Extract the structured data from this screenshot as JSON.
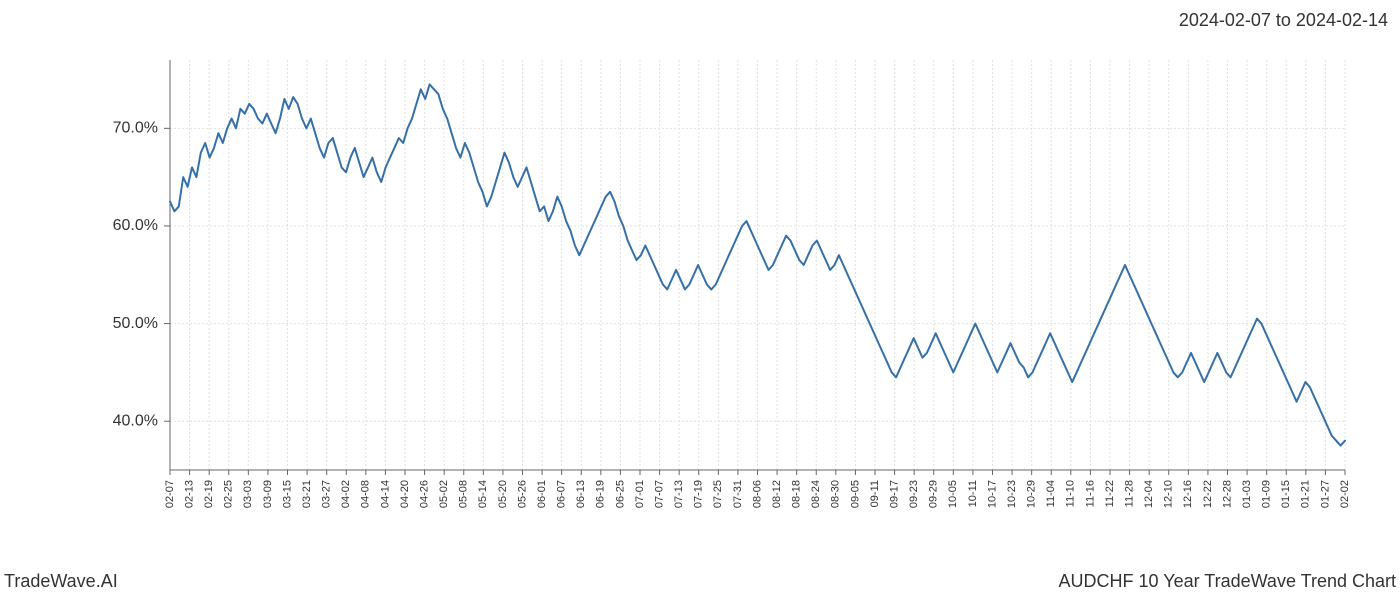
{
  "header": {
    "date_range": "2024-02-07 to 2024-02-14"
  },
  "footer": {
    "left": "TradeWave.AI",
    "right": "AUDCHF 10 Year TradeWave Trend Chart"
  },
  "chart": {
    "type": "line",
    "background_color": "#ffffff",
    "grid_color": "#e0e0e0",
    "axis_color": "#666666",
    "line_color": "#3570a8",
    "line_width": 2,
    "highlight_band": {
      "fill": "#e8efe0",
      "x_start": "02-07",
      "x_end": "02-14"
    },
    "y_axis": {
      "min": 35,
      "max": 77,
      "ticks": [
        40,
        50,
        60,
        70
      ],
      "tick_labels": [
        "40.0%",
        "50.0%",
        "60.0%",
        "70.0%"
      ],
      "label_fontsize": 16
    },
    "x_axis": {
      "ticks": [
        "02-07",
        "02-13",
        "02-19",
        "02-25",
        "03-03",
        "03-09",
        "03-15",
        "03-21",
        "03-27",
        "04-02",
        "04-08",
        "04-14",
        "04-20",
        "04-26",
        "05-02",
        "05-08",
        "05-14",
        "05-20",
        "05-26",
        "06-01",
        "06-07",
        "06-13",
        "06-19",
        "06-25",
        "07-01",
        "07-07",
        "07-13",
        "07-19",
        "07-25",
        "07-31",
        "08-06",
        "08-12",
        "08-18",
        "08-24",
        "08-30",
        "09-05",
        "09-11",
        "09-17",
        "09-23",
        "09-29",
        "10-05",
        "10-11",
        "10-17",
        "10-23",
        "10-29",
        "11-04",
        "11-10",
        "11-16",
        "11-22",
        "11-28",
        "12-04",
        "12-10",
        "12-16",
        "12-22",
        "12-28",
        "01-03",
        "01-09",
        "01-15",
        "01-21",
        "01-27",
        "02-02"
      ],
      "label_fontsize": 11,
      "rotation": -90
    },
    "data": [
      62.5,
      61.5,
      62.0,
      65.0,
      64.0,
      66.0,
      65.0,
      67.5,
      68.5,
      67.0,
      68.0,
      69.5,
      68.5,
      70.0,
      71.0,
      70.0,
      72.0,
      71.5,
      72.5,
      72.0,
      71.0,
      70.5,
      71.5,
      70.5,
      69.5,
      71.0,
      73.0,
      72.0,
      73.2,
      72.5,
      71.0,
      70.0,
      71.0,
      69.5,
      68.0,
      67.0,
      68.5,
      69.0,
      67.5,
      66.0,
      65.5,
      67.0,
      68.0,
      66.5,
      65.0,
      66.0,
      67.0,
      65.5,
      64.5,
      66.0,
      67.0,
      68.0,
      69.0,
      68.5,
      70.0,
      71.0,
      72.5,
      74.0,
      73.0,
      74.5,
      74.0,
      73.5,
      72.0,
      71.0,
      69.5,
      68.0,
      67.0,
      68.5,
      67.5,
      66.0,
      64.5,
      63.5,
      62.0,
      63.0,
      64.5,
      66.0,
      67.5,
      66.5,
      65.0,
      64.0,
      65.0,
      66.0,
      64.5,
      63.0,
      61.5,
      62.0,
      60.5,
      61.5,
      63.0,
      62.0,
      60.5,
      59.5,
      58.0,
      57.0,
      58.0,
      59.0,
      60.0,
      61.0,
      62.0,
      63.0,
      63.5,
      62.5,
      61.0,
      60.0,
      58.5,
      57.5,
      56.5,
      57.0,
      58.0,
      57.0,
      56.0,
      55.0,
      54.0,
      53.5,
      54.5,
      55.5,
      54.5,
      53.5,
      54.0,
      55.0,
      56.0,
      55.0,
      54.0,
      53.5,
      54.0,
      55.0,
      56.0,
      57.0,
      58.0,
      59.0,
      60.0,
      60.5,
      59.5,
      58.5,
      57.5,
      56.5,
      55.5,
      56.0,
      57.0,
      58.0,
      59.0,
      58.5,
      57.5,
      56.5,
      56.0,
      57.0,
      58.0,
      58.5,
      57.5,
      56.5,
      55.5,
      56.0,
      57.0,
      56.0,
      55.0,
      54.0,
      53.0,
      52.0,
      51.0,
      50.0,
      49.0,
      48.0,
      47.0,
      46.0,
      45.0,
      44.5,
      45.5,
      46.5,
      47.5,
      48.5,
      47.5,
      46.5,
      47.0,
      48.0,
      49.0,
      48.0,
      47.0,
      46.0,
      45.0,
      46.0,
      47.0,
      48.0,
      49.0,
      50.0,
      49.0,
      48.0,
      47.0,
      46.0,
      45.0,
      46.0,
      47.0,
      48.0,
      47.0,
      46.0,
      45.5,
      44.5,
      45.0,
      46.0,
      47.0,
      48.0,
      49.0,
      48.0,
      47.0,
      46.0,
      45.0,
      44.0,
      45.0,
      46.0,
      47.0,
      48.0,
      49.0,
      50.0,
      51.0,
      52.0,
      53.0,
      54.0,
      55.0,
      56.0,
      55.0,
      54.0,
      53.0,
      52.0,
      51.0,
      50.0,
      49.0,
      48.0,
      47.0,
      46.0,
      45.0,
      44.5,
      45.0,
      46.0,
      47.0,
      46.0,
      45.0,
      44.0,
      45.0,
      46.0,
      47.0,
      46.0,
      45.0,
      44.5,
      45.5,
      46.5,
      47.5,
      48.5,
      49.5,
      50.5,
      50.0,
      49.0,
      48.0,
      47.0,
      46.0,
      45.0,
      44.0,
      43.0,
      42.0,
      43.0,
      44.0,
      43.5,
      42.5,
      41.5,
      40.5,
      39.5,
      38.5,
      38.0,
      37.5,
      38.0
    ]
  }
}
